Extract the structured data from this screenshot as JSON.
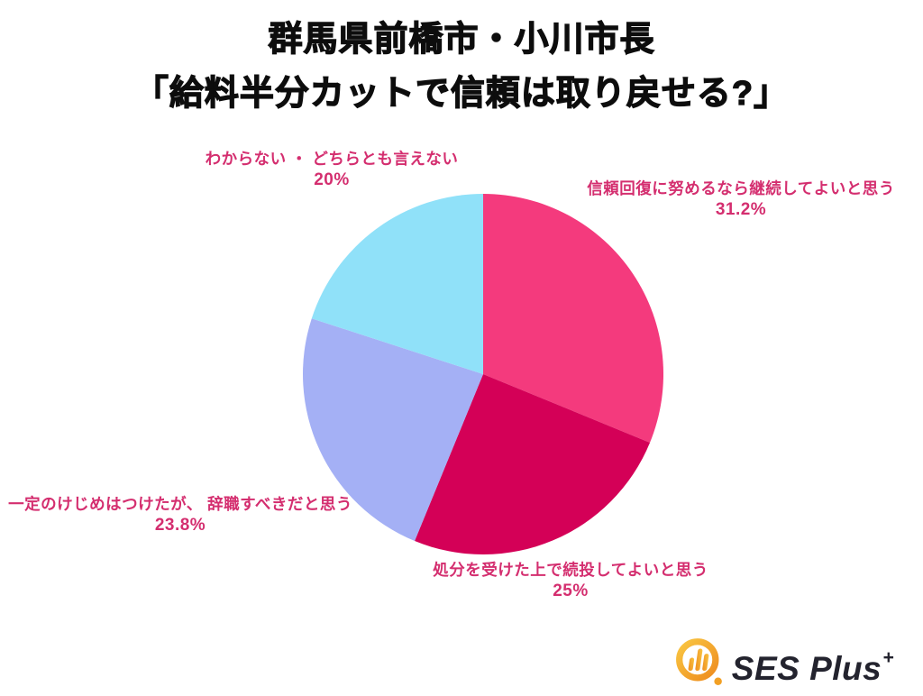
{
  "title": {
    "line1": "群馬県前橋市・小川市長",
    "line2": "「給料半分カットで信頼は取り戻せる?」"
  },
  "chart_data": {
    "type": "pie",
    "title": "群馬県前橋市・小川市長「給料半分カットで信頼は取り戻せる?」",
    "unit": "%",
    "legend": "none",
    "labels_position": "outside",
    "start_angle_deg_from_top": 0,
    "direction": "clockwise",
    "label_color": "#d42e6f",
    "slices": [
      {
        "label": "信頼回復に努めるなら継続してよいと思う",
        "value": 31.2,
        "pct_text": "31.2%",
        "color": "#f43a7d"
      },
      {
        "label": "処分を受けた上で続投してよいと思う",
        "value": 25,
        "pct_text": "25%",
        "color": "#d40057"
      },
      {
        "label": "一定のけじめはつけたが、 辞職すべきだと思う",
        "value": 23.8,
        "pct_text": "23.8%",
        "color": "#a4b0f5"
      },
      {
        "label": "わからない ・ どちらとも言えない",
        "value": 20,
        "pct_text": "20%",
        "color": "#90e1f9"
      }
    ]
  },
  "logo": {
    "text": "SES Plus",
    "superscript": "+",
    "icon": "bar-chart-ring-icon",
    "icon_color": "#f2a024",
    "text_color": "#23232e"
  }
}
